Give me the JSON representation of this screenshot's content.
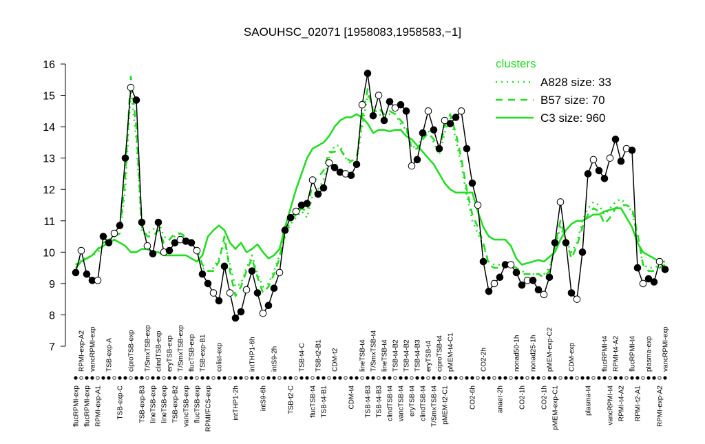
{
  "chart_data": {
    "type": "line",
    "title": "SAOUHSC_02071 [1958083,1958583,−1]",
    "ylim": [
      7,
      16
    ],
    "yticks": [
      7,
      8,
      9,
      10,
      11,
      12,
      13,
      14,
      15,
      16
    ],
    "color": "#000000",
    "legend": {
      "title": "clusters",
      "title_color": "#22dd22",
      "position": "topright"
    },
    "categories": [
      "flucRPMI-exp",
      "RPMI-exp-A2",
      "flucRPMI-exp",
      "vancRPMI-exp",
      "RPMI-exp-A1",
      null,
      "TSB-exp-A",
      null,
      "TSB-exp-C",
      null,
      "ciproTSB-exp",
      null,
      "TSB-exp-B3",
      "T/SmxTSB-exp",
      "lineTSB-exp",
      "clindTSB-exp",
      "lineTSB-exp",
      "eryTSB-exp",
      "TSB-exp-B2",
      "T/SmxTSB-exp",
      "vancTSB-exp",
      "flucTSB-exp",
      "flucTSB-exp",
      "TSB-exp-B1",
      "RPMI/FCS-exp",
      null,
      "colist-exp",
      null,
      null,
      "intTHP1-2h",
      null,
      null,
      "intTHP1-6h",
      null,
      "intS9-6h",
      null,
      "intS9-2h",
      null,
      null,
      "TSB-t2-C",
      null,
      "TSB-t4-C",
      null,
      "flucTSB-t4",
      "TSB-t2-B1",
      "TSB-t4-B1",
      null,
      "CDM-t2",
      null,
      null,
      "CDM-t4",
      null,
      "lineTSB-t4",
      "TSB-t4-B3",
      "T/SmxTSB-t4",
      "TSB-t4-B3",
      "lineTSB-t4",
      "clindTSB-t4",
      "TSB-t4-B2",
      "vancTSB-t4",
      "TSB-t4-B2",
      "eryTSB-t4",
      "TSB-t4-B3",
      "clindTSB-t4",
      "eryTSB-t4",
      "T/SmxTSB-t4",
      "ciproTSB-t4",
      "pMEM-t2-C1",
      "pMEM-t4-C1",
      null,
      null,
      null,
      "CO2-6h",
      null,
      "CO2-2h",
      null,
      null,
      "anaer-2h",
      null,
      null,
      "nonad50-1h",
      "CO2-1h",
      null,
      "nonad25-1h",
      null,
      "CO2-1h",
      "pMEM-exp-C2",
      "pMEM-exp-C1",
      null,
      null,
      "CDM-exp",
      null,
      null,
      "plasma-t4",
      null,
      null,
      "flucRPMI-t4",
      "vancRPMI-t4",
      "RPMI-t4-A2",
      "RPMI-t4-A2",
      null,
      "flucRPMI-t4",
      "RPMI-t2-A1",
      null,
      "plasma-exp",
      null,
      "RPMI-exp-A2",
      "vancRPMI-exp"
    ],
    "values": [
      9.35,
      10.05,
      9.3,
      9.1,
      9.1,
      10.5,
      10.3,
      10.6,
      10.85,
      13.0,
      15.25,
      14.85,
      10.95,
      10.2,
      9.95,
      10.95,
      10.0,
      10.05,
      10.3,
      10.4,
      10.35,
      10.3,
      10.05,
      9.3,
      9.0,
      8.7,
      8.45,
      9.55,
      8.7,
      7.9,
      8.1,
      8.8,
      9.4,
      8.7,
      8.05,
      8.3,
      8.85,
      9.35,
      10.7,
      11.1,
      11.3,
      11.5,
      11.55,
      12.3,
      11.85,
      12.05,
      12.85,
      12.7,
      12.55,
      12.5,
      12.45,
      12.8,
      14.7,
      15.7,
      14.35,
      15.0,
      14.2,
      14.8,
      14.6,
      14.7,
      14.5,
      12.75,
      12.95,
      13.8,
      14.5,
      13.9,
      13.3,
      14.2,
      14.1,
      14.3,
      14.5,
      13.3,
      12.2,
      11.5,
      9.7,
      8.75,
      9.0,
      9.2,
      9.6,
      9.6,
      9.35,
      8.95,
      9.1,
      9.1,
      8.8,
      8.65,
      9.2,
      10.3,
      11.6,
      10.3,
      8.7,
      8.5,
      10.0,
      12.5,
      12.95,
      12.6,
      12.35,
      13.0,
      13.6,
      12.9,
      13.3,
      13.25,
      9.5,
      9.0,
      9.15,
      9.05,
      9.7,
      9.45
    ],
    "series": [
      {
        "name": "A828 size: 33",
        "color": "#22dd22",
        "linestyle": "dotted",
        "values": [
          9.6,
          9.8,
          9.8,
          9.9,
          10.0,
          10.2,
          10.4,
          10.5,
          10.6,
          12.0,
          15.2,
          13.6,
          10.6,
          10.6,
          10.7,
          11.0,
          10.5,
          10.4,
          10.5,
          10.6,
          10.4,
          10.2,
          10.0,
          9.5,
          9.4,
          9.5,
          9.8,
          10.3,
          9.6,
          8.9,
          9.0,
          9.5,
          9.9,
          9.3,
          8.9,
          9.0,
          9.4,
          9.9,
          10.5,
          10.9,
          11.1,
          11.3,
          11.1,
          11.8,
          12.0,
          12.3,
          13.0,
          13.4,
          13.4,
          13.0,
          12.8,
          12.9,
          14.0,
          15.0,
          14.6,
          14.4,
          14.3,
          14.4,
          14.4,
          14.1,
          13.9,
          13.4,
          13.3,
          13.7,
          13.9,
          13.5,
          13.1,
          13.8,
          14.3,
          13.6,
          12.8,
          11.8,
          11.0,
          10.6,
          10.2,
          9.7,
          9.6,
          9.6,
          9.7,
          9.6,
          9.5,
          9.4,
          9.3,
          9.3,
          9.3,
          9.3,
          9.5,
          10.1,
          10.8,
          10.4,
          10.0,
          10.3,
          11.0,
          11.4,
          11.6,
          11.5,
          11.2,
          11.4,
          11.6,
          11.7,
          11.5,
          11.3,
          10.5,
          9.6,
          9.5,
          9.5,
          9.6,
          9.7
        ]
      },
      {
        "name": "B57 size: 70",
        "color": "#22dd22",
        "linestyle": "dashed",
        "values": [
          9.5,
          9.7,
          9.8,
          9.9,
          10.1,
          10.3,
          10.4,
          10.5,
          10.6,
          12.5,
          15.6,
          14.0,
          10.8,
          10.5,
          10.5,
          10.7,
          10.3,
          10.4,
          10.6,
          10.6,
          10.5,
          10.3,
          10.1,
          9.6,
          9.4,
          9.4,
          9.7,
          10.5,
          9.4,
          8.6,
          8.9,
          9.4,
          9.8,
          9.2,
          8.7,
          8.9,
          9.3,
          9.8,
          10.6,
          11.0,
          11.2,
          11.4,
          11.3,
          12.2,
          12.4,
          12.6,
          13.2,
          13.2,
          13.3,
          13.0,
          12.9,
          13.0,
          14.3,
          15.2,
          14.5,
          14.6,
          14.4,
          14.5,
          14.4,
          14.2,
          14.0,
          13.3,
          13.3,
          13.6,
          13.8,
          13.6,
          13.3,
          14.0,
          14.4,
          13.8,
          13.0,
          12.0,
          11.2,
          10.8,
          10.3,
          9.6,
          9.5,
          9.5,
          9.6,
          9.6,
          9.5,
          9.3,
          9.3,
          9.3,
          9.3,
          9.2,
          9.4,
          10.2,
          11.0,
          10.4,
          9.8,
          10.2,
          10.8,
          11.2,
          11.4,
          11.3,
          10.9,
          11.1,
          11.4,
          11.5,
          11.5,
          11.4,
          10.6,
          9.6,
          9.4,
          9.4,
          9.5,
          9.6
        ]
      },
      {
        "name": "C3 size: 960",
        "color": "#22dd22",
        "linestyle": "solid",
        "values": [
          9.6,
          9.7,
          9.8,
          9.9,
          10.1,
          10.2,
          10.3,
          10.4,
          10.3,
          10.2,
          10.0,
          10.0,
          10.1,
          10.1,
          10.0,
          10.0,
          9.9,
          9.9,
          9.9,
          9.9,
          9.9,
          9.8,
          9.7,
          9.9,
          10.5,
          10.7,
          10.85,
          10.7,
          10.3,
          10.1,
          10.3,
          10.0,
          10.1,
          10.25,
          10.0,
          9.8,
          9.9,
          10.1,
          10.8,
          11.4,
          12.0,
          12.5,
          13.0,
          13.3,
          13.4,
          13.5,
          13.7,
          14.0,
          14.2,
          14.3,
          14.3,
          14.4,
          14.3,
          14.1,
          13.8,
          13.9,
          13.9,
          13.85,
          13.9,
          13.9,
          13.7,
          13.6,
          13.4,
          13.2,
          13.0,
          12.8,
          12.5,
          12.2,
          12.0,
          11.9,
          11.9,
          11.9,
          11.9,
          11.3,
          10.8,
          10.5,
          10.4,
          10.4,
          10.4,
          10.2,
          9.8,
          9.6,
          9.65,
          9.7,
          9.75,
          9.7,
          9.85,
          10.0,
          10.4,
          10.7,
          10.9,
          11.0,
          11.0,
          11.1,
          11.2,
          11.2,
          11.3,
          11.35,
          11.4,
          11.4,
          11.1,
          10.8,
          10.3,
          10.0,
          9.9,
          9.8,
          9.7,
          9.7
        ]
      }
    ]
  }
}
